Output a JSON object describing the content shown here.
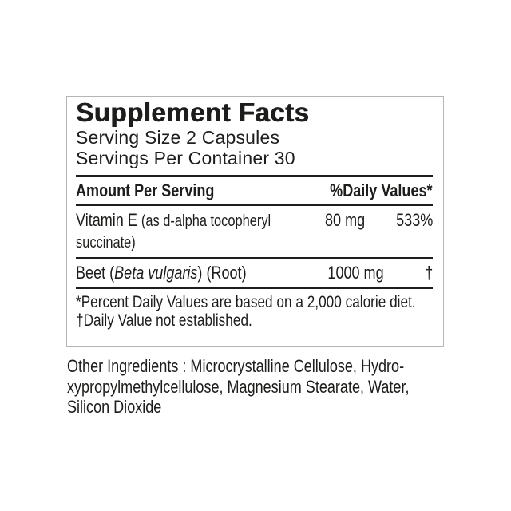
{
  "colors": {
    "text": "#1d1d1b",
    "rule": "#1d1d1b",
    "panel_border": "#b5b5b5",
    "background": "#ffffff"
  },
  "supplement_facts": {
    "title": "Supplement Facts",
    "serving_size": "Serving Size 2 Capsules",
    "servings_per_container": "Servings Per Container 30",
    "columns": {
      "left": "Amount Per Serving",
      "right": "%Daily Values*"
    },
    "rows": [
      {
        "name_main": "Vitamin E",
        "name_detail": "(as d-alpha tocopheryl succinate)",
        "amount": "80 mg",
        "daily_value": "533%"
      },
      {
        "name_prefix": "Beet (",
        "name_scientific": "Beta vulgaris",
        "name_suffix": ") (Root)",
        "amount": "1000 mg",
        "daily_value": "†"
      }
    ],
    "footnotes": [
      "*Percent Daily Values are based on a 2,000 calorie diet.",
      "†Daily Value not established."
    ]
  },
  "other_ingredients": {
    "lines": [
      "Other Ingredients : Microcrystalline Cellulose, Hydro-",
      "xypropylmethylcellulose, Magnesium Stearate, Water,",
      "Silicon Dioxide"
    ]
  }
}
